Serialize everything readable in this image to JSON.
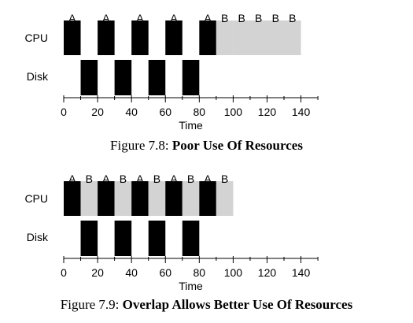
{
  "figure_7_8": {
    "caption_prefix": "Figure 7.8:",
    "caption_title": "Poor Use Of Resources",
    "rows": [
      "CPU",
      "Disk"
    ],
    "cpu_segments": [
      {
        "start": 0,
        "end": 10,
        "job": "A",
        "fill": "black"
      },
      {
        "start": 20,
        "end": 30,
        "job": "A",
        "fill": "black"
      },
      {
        "start": 40,
        "end": 50,
        "job": "A",
        "fill": "black"
      },
      {
        "start": 60,
        "end": 70,
        "job": "A",
        "fill": "black"
      },
      {
        "start": 80,
        "end": 90,
        "job": "A",
        "fill": "black"
      },
      {
        "start": 90,
        "end": 100,
        "job": "B",
        "fill": "gray"
      },
      {
        "start": 100,
        "end": 110,
        "job": "B",
        "fill": "gray"
      },
      {
        "start": 110,
        "end": 120,
        "job": "B",
        "fill": "gray"
      },
      {
        "start": 120,
        "end": 130,
        "job": "B",
        "fill": "gray"
      },
      {
        "start": 130,
        "end": 140,
        "job": "B",
        "fill": "gray"
      }
    ],
    "disk_segments": [
      {
        "start": 10,
        "end": 20
      },
      {
        "start": 30,
        "end": 40
      },
      {
        "start": 50,
        "end": 60
      },
      {
        "start": 70,
        "end": 80
      }
    ],
    "x_ticks": [
      0,
      20,
      40,
      60,
      80,
      100,
      120,
      140
    ],
    "x_label": "Time"
  },
  "figure_7_9": {
    "caption_prefix": "Figure 7.9:",
    "caption_title": "Overlap Allows Better Use Of Resources",
    "rows": [
      "CPU",
      "Disk"
    ],
    "cpu_segments": [
      {
        "start": 0,
        "end": 10,
        "job": "A",
        "fill": "black"
      },
      {
        "start": 10,
        "end": 20,
        "job": "B",
        "fill": "gray"
      },
      {
        "start": 20,
        "end": 30,
        "job": "A",
        "fill": "black"
      },
      {
        "start": 30,
        "end": 40,
        "job": "B",
        "fill": "gray"
      },
      {
        "start": 40,
        "end": 50,
        "job": "A",
        "fill": "black"
      },
      {
        "start": 50,
        "end": 60,
        "job": "B",
        "fill": "gray"
      },
      {
        "start": 60,
        "end": 70,
        "job": "A",
        "fill": "black"
      },
      {
        "start": 70,
        "end": 80,
        "job": "B",
        "fill": "gray"
      },
      {
        "start": 80,
        "end": 90,
        "job": "A",
        "fill": "black"
      },
      {
        "start": 90,
        "end": 100,
        "job": "B",
        "fill": "gray"
      }
    ],
    "disk_segments": [
      {
        "start": 10,
        "end": 20
      },
      {
        "start": 30,
        "end": 40
      },
      {
        "start": 50,
        "end": 60
      },
      {
        "start": 70,
        "end": 80
      }
    ],
    "x_ticks": [
      0,
      20,
      40,
      60,
      80,
      100,
      120,
      140
    ],
    "x_label": "Time"
  },
  "colors": {
    "job_a": "#000000",
    "job_b": "#d3d3d3",
    "axis": "#000000"
  }
}
